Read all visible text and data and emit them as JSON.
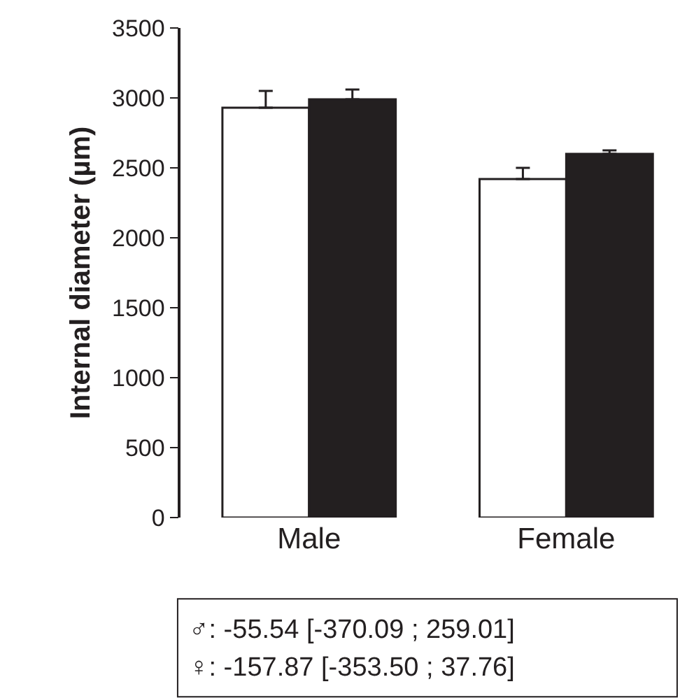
{
  "chart_data": {
    "type": "bar",
    "ylabel": "Internal diameter (µm)",
    "categories": [
      "Male",
      "Female"
    ],
    "series": [
      {
        "color": "#ffffff",
        "values": [
          2930,
          2420
        ],
        "errors": [
          [
            2930,
            3050
          ],
          [
            2420,
            2500
          ]
        ]
      },
      {
        "color": "#231f20",
        "values": [
          2990,
          2600
        ],
        "errors": [
          [
            2990,
            3060
          ],
          [
            2600,
            2625
          ]
        ]
      }
    ],
    "ylim": [
      0,
      3500
    ],
    "yticks": [
      0,
      500,
      1000,
      1500,
      2000,
      2500,
      3000,
      3500
    ],
    "annotations": [
      "♂: -55.54 [-370.09 ; 259.01]",
      "♀: -157.87 [-353.50 ; 37.76]"
    ]
  }
}
